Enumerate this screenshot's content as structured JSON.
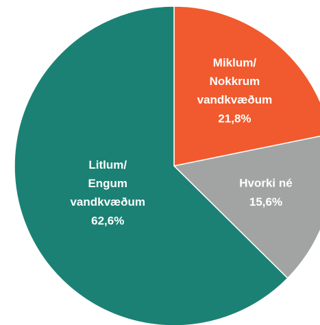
{
  "chart_data": {
    "type": "pie",
    "categories": [
      "Miklum/\nNokkrum\nvandkvæðum",
      "Hvorki né",
      "Litlum/\nEngum\nvandkvæðum"
    ],
    "values": [
      21.8,
      15.6,
      62.6
    ],
    "value_labels": [
      "21,8%",
      "15,6%",
      "62,6%"
    ],
    "colors": [
      "#f15a2e",
      "#a2a4a3",
      "#1b8174"
    ]
  }
}
